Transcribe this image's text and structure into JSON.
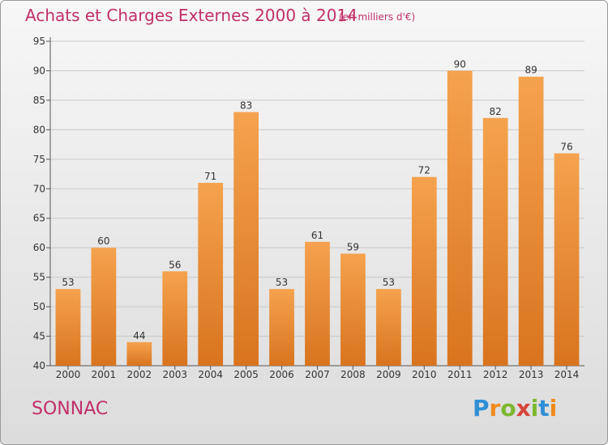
{
  "title": "Achats et Charges Externes 2000 à 2014",
  "subtitle": "(en milliers d'€)",
  "commune": "SONNAC",
  "logo": {
    "letters": [
      "P",
      "r",
      "o",
      "x",
      "i",
      "t",
      "i"
    ],
    "colors": [
      "#2f8fd6",
      "#f08a1c",
      "#7cb82f",
      "#d8453b",
      "#7cb82f",
      "#2f8fd6",
      "#f08a1c"
    ]
  },
  "colors": {
    "bar_top": "#f5a24e",
    "bar_bottom": "#d9741e",
    "text": "#333333",
    "accent": "#c12f6a"
  },
  "chart_data": {
    "type": "bar",
    "categories": [
      "2000",
      "2001",
      "2002",
      "2003",
      "2004",
      "2005",
      "2006",
      "2007",
      "2008",
      "2009",
      "2010",
      "2011",
      "2012",
      "2013",
      "2014"
    ],
    "values": [
      53,
      60,
      44,
      56,
      71,
      83,
      53,
      61,
      59,
      53,
      72,
      90,
      82,
      89,
      76
    ],
    "ylim": [
      40,
      95
    ],
    "yticks": [
      40,
      45,
      50,
      55,
      60,
      65,
      70,
      75,
      80,
      85,
      90,
      95
    ],
    "grid": true,
    "data_labels": true
  }
}
